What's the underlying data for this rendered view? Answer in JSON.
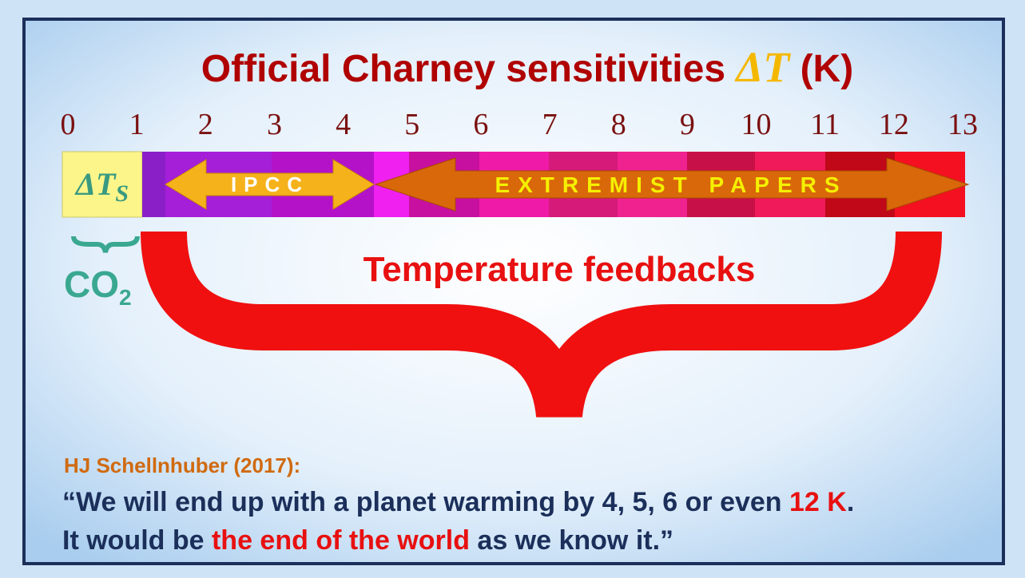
{
  "title": {
    "text": "Official Charney sensitivities",
    "symbol": "ΔT",
    "unit": "(K)"
  },
  "scale": {
    "ticks": [
      0,
      1,
      2,
      3,
      4,
      5,
      6,
      7,
      8,
      9,
      10,
      11,
      12,
      13
    ]
  },
  "direct": {
    "symbol": "ΔT",
    "subscript": "S"
  },
  "arrows": {
    "ipcc": "IPCC",
    "extremist": "EXTREMIST PAPERS"
  },
  "brace": {
    "label": "Temperature feedbacks"
  },
  "co2": {
    "text": "CO",
    "subscript": "2"
  },
  "citation": "HJ Schellnhuber (2017):",
  "quote": {
    "line1": [
      "“We will end up with a planet warming by 4, 5, 6 or even ",
      "12 K",
      "."
    ],
    "line2": [
      "It would be ",
      "the end of the world",
      " as we know it.”"
    ]
  }
}
